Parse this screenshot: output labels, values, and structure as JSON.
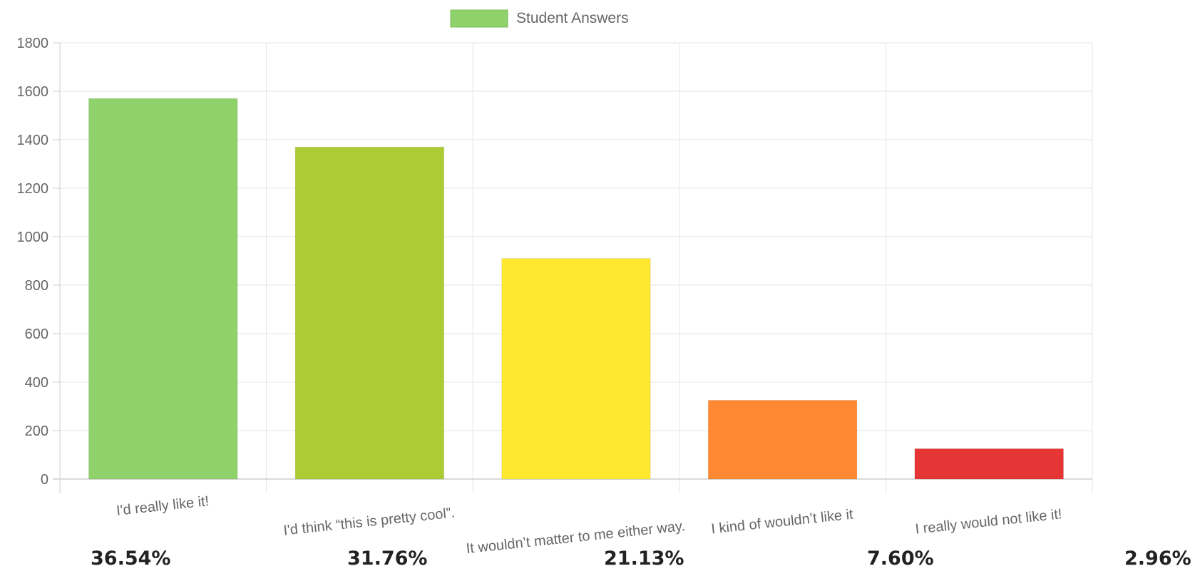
{
  "chart_data": {
    "type": "bar",
    "title": "",
    "xlabel": "",
    "ylabel": "",
    "legend": {
      "position": "top-center",
      "entries": [
        {
          "name": "Student Answers",
          "color": "#8fd16a"
        }
      ]
    },
    "categories": [
      "I'd really like it!",
      "I'd think “this is pretty cool”.",
      "It wouldn’t matter to me either way.",
      "I kind of wouldn’t like it",
      "I really would not like it!"
    ],
    "series": [
      {
        "name": "Student Answers",
        "values": [
          1570,
          1370,
          910,
          325,
          125
        ]
      }
    ],
    "bar_colors": [
      "#8fd16a",
      "#adcb35",
      "#ffe930",
      "#ff8833",
      "#e63535"
    ],
    "ylim": [
      0,
      1800
    ],
    "yticks": [
      0,
      200,
      400,
      600,
      800,
      1000,
      1200,
      1400,
      1600,
      1800
    ],
    "grid": true,
    "percentages": [
      "36.54%",
      "31.76%",
      "21.13%",
      "7.60%",
      "2.96%"
    ]
  }
}
